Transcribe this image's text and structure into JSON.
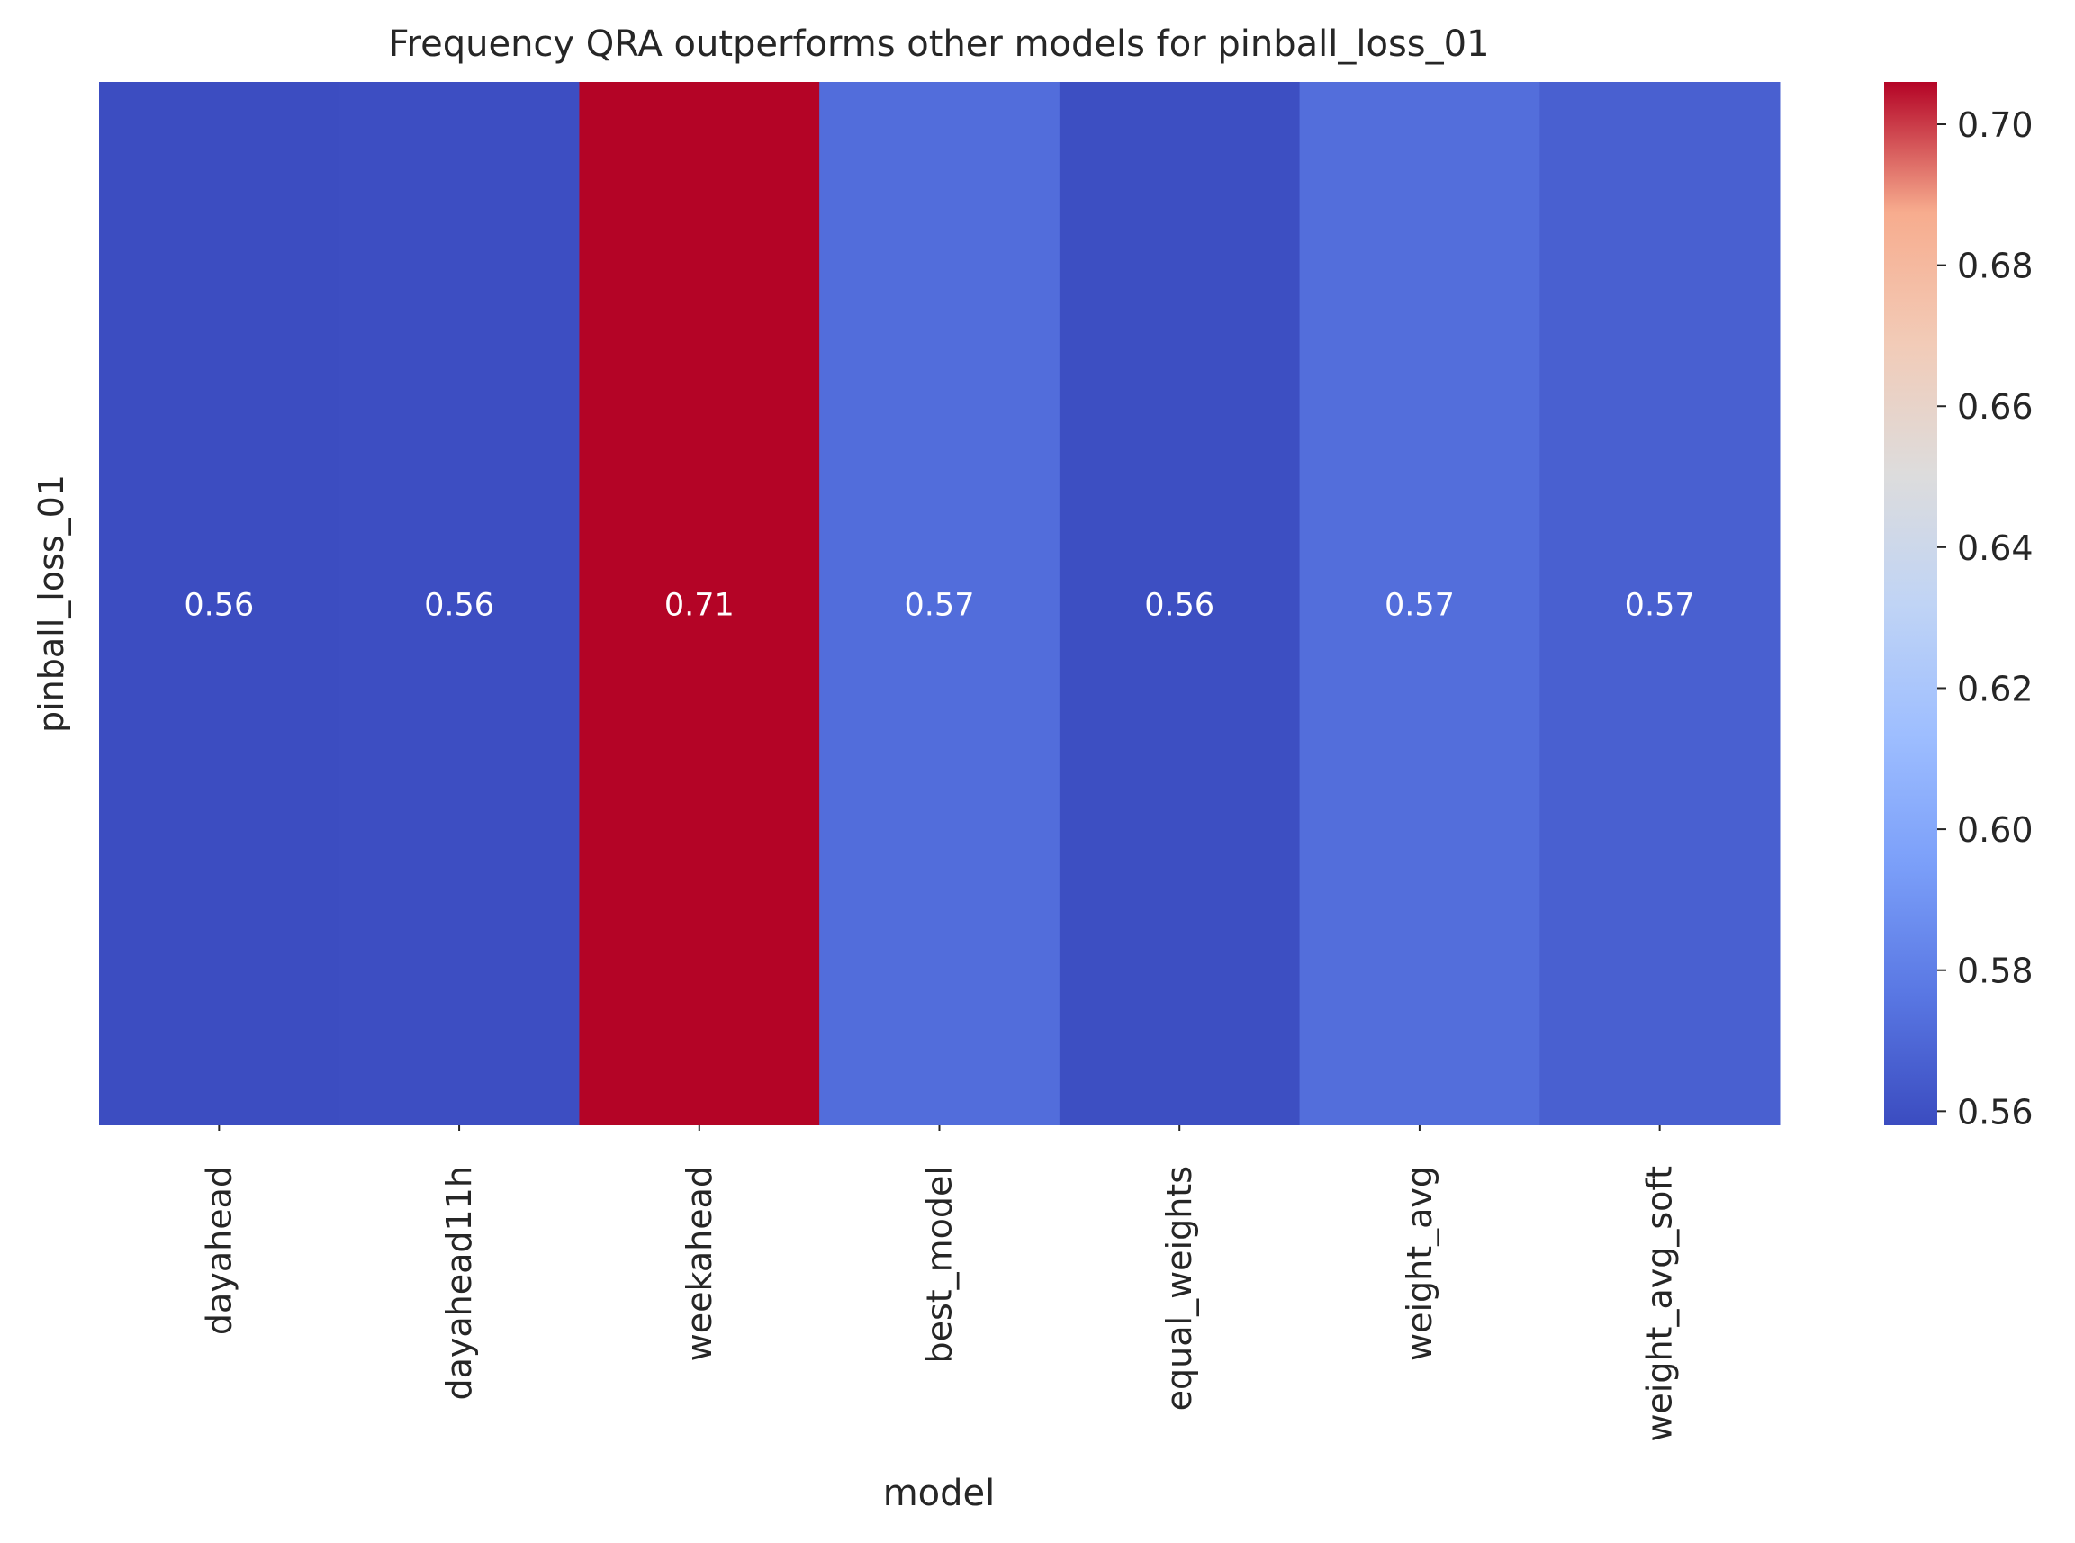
{
  "chart_data": {
    "type": "heatmap",
    "title": "Frequency QRA outperforms other models for pinball_loss_01",
    "xlabel": "model",
    "ylabel": "",
    "rows": [
      "pinball_loss_01"
    ],
    "columns": [
      "dayahead",
      "dayahead11h",
      "weekahead",
      "best_model",
      "equal_weights",
      "weight_avg",
      "weight_avg_soft"
    ],
    "values": [
      [
        0.5586,
        0.559,
        0.7061,
        0.5723,
        0.5592,
        0.5725,
        0.5664
      ]
    ],
    "annotations": [
      [
        "0.56",
        "0.56",
        "0.71",
        "0.57",
        "0.56",
        "0.57",
        "0.57"
      ]
    ],
    "colormap": "coolwarm",
    "colorbar": {
      "vmin": 0.558,
      "vmax": 0.706,
      "ticks": [
        0.56,
        0.58,
        0.6,
        0.62,
        0.64,
        0.66,
        0.68,
        0.7
      ],
      "tick_labels": [
        "0.56",
        "0.58",
        "0.60",
        "0.62",
        "0.64",
        "0.66",
        "0.68",
        "0.70"
      ]
    },
    "grid": false,
    "legend": "colorbar-right"
  }
}
